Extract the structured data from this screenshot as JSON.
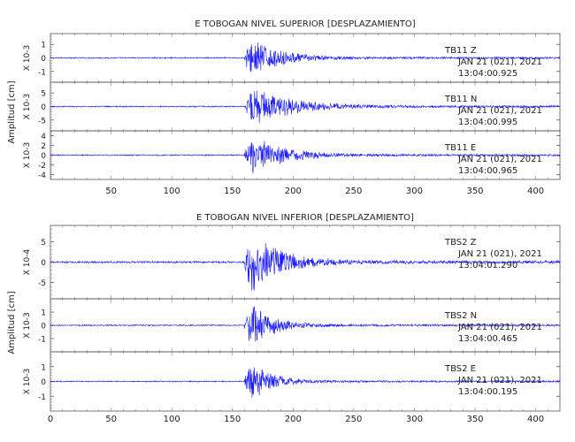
{
  "chart_data": [
    {
      "type": "line",
      "title": "E TOBOGAN NIVEL SUPERIOR [DESPLAZAMIENTO]",
      "ylabel": "Amplitud [cm]",
      "x_ticks": [
        50,
        100,
        150,
        200,
        250,
        300,
        350,
        400
      ],
      "xlim": [
        0,
        420
      ],
      "series_color": "#1a1aff",
      "traces": [
        {
          "multiplier_label": "X 10-3",
          "y_ticks": [
            -1,
            0,
            1
          ],
          "ylim": [
            -1.8,
            1.8
          ],
          "peak": 1.6,
          "onset": 160,
          "decay": 22,
          "station": "TB11",
          "component": "Z",
          "date": "JAN 21 (021), 2021",
          "time": "13:04:00.925"
        },
        {
          "multiplier_label": "X 10-3",
          "y_ticks": [
            -5,
            0,
            5
          ],
          "ylim": [
            -9,
            9
          ],
          "peak": 8,
          "onset": 161,
          "decay": 30,
          "station": "TB11",
          "component": "N",
          "date": "JAN 21 (021), 2021",
          "time": "13:04:00.995"
        },
        {
          "multiplier_label": "X 10-3",
          "y_ticks": [
            -4,
            -2,
            0,
            2,
            4
          ],
          "ylim": [
            -5,
            5
          ],
          "peak": 4.4,
          "onset": 160,
          "decay": 25,
          "station": "TB11",
          "component": "E",
          "date": "JAN 21 (021), 2021",
          "time": "13:04:00.965"
        }
      ]
    },
    {
      "type": "line",
      "title": "E TOBOGAN NIVEL INFERIOR [DESPLAZAMIENTO]",
      "ylabel": "Amplitud [cm]",
      "x_ticks": [
        0,
        50,
        100,
        150,
        200,
        250,
        300,
        350,
        400
      ],
      "xlim": [
        0,
        420
      ],
      "series_color": "#1a1aff",
      "traces": [
        {
          "multiplier_label": "X 10-4",
          "y_ticks": [
            -5,
            0,
            5
          ],
          "ylim": [
            -9,
            9
          ],
          "peak": 8,
          "onset": 160,
          "decay": 24,
          "station": "TBS2",
          "component": "Z",
          "date": "JAN 21 (021), 2021",
          "time": "13:04:01.290"
        },
        {
          "multiplier_label": "X 10-3",
          "y_ticks": [
            -1,
            0,
            1
          ],
          "ylim": [
            -2,
            2
          ],
          "peak": 1.7,
          "onset": 160,
          "decay": 18,
          "station": "TBS2",
          "component": "N",
          "date": "JAN 21 (021), 2021",
          "time": "13:04:00.465"
        },
        {
          "multiplier_label": "X 10-3",
          "y_ticks": [
            -1,
            0,
            1
          ],
          "ylim": [
            -2,
            2
          ],
          "peak": 1.3,
          "onset": 160,
          "decay": 18,
          "station": "TBS2",
          "component": "E",
          "date": "JAN 21 (021), 2021",
          "time": "13:04:00.195"
        }
      ]
    }
  ]
}
